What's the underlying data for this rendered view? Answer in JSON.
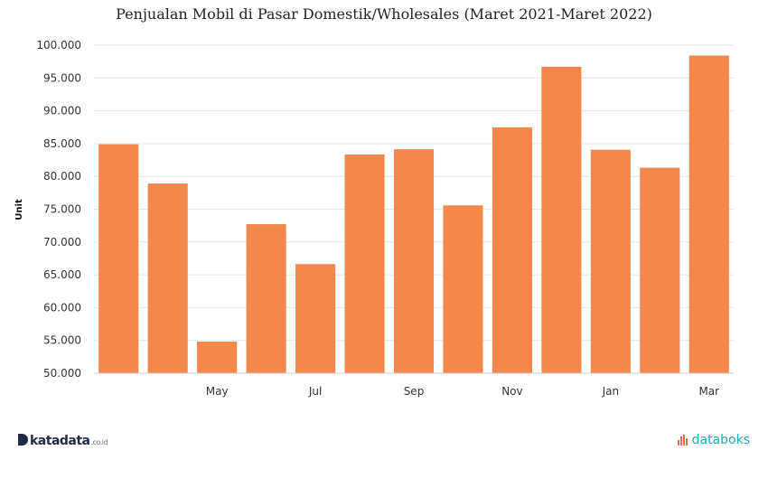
{
  "chart_data": {
    "type": "bar",
    "title": "Penjualan Mobil di Pasar Domestik/Wholesales (Maret 2021-Maret 2022)",
    "ylabel": "Unit",
    "xlabel": "",
    "ylim": [
      50000,
      100000
    ],
    "yticks": [
      50000,
      55000,
      60000,
      65000,
      70000,
      75000,
      80000,
      85000,
      90000,
      95000,
      100000
    ],
    "ytick_labels": [
      "50.000",
      "55.000",
      "60.000",
      "65.000",
      "70.000",
      "75.000",
      "80.000",
      "85.000",
      "90.000",
      "95.000",
      "100.000"
    ],
    "categories": [
      "",
      "",
      "May",
      "",
      "Jul",
      "",
      "Sep",
      "",
      "Nov",
      "",
      "Jan",
      "",
      "Mar"
    ],
    "values": [
      84910,
      78908,
      54815,
      72720,
      66628,
      83349,
      84133,
      75580,
      87469,
      96711,
      84067,
      81326,
      98416
    ],
    "bar_color": "#f4874b",
    "grid": true,
    "legend": "none"
  },
  "branding": {
    "left_logo": "katadata",
    "left_logo_suffix": ".co.id",
    "right_logo": "databoks",
    "left_icon": "katadata-d-icon",
    "right_icon": "databoks-bars-icon"
  }
}
